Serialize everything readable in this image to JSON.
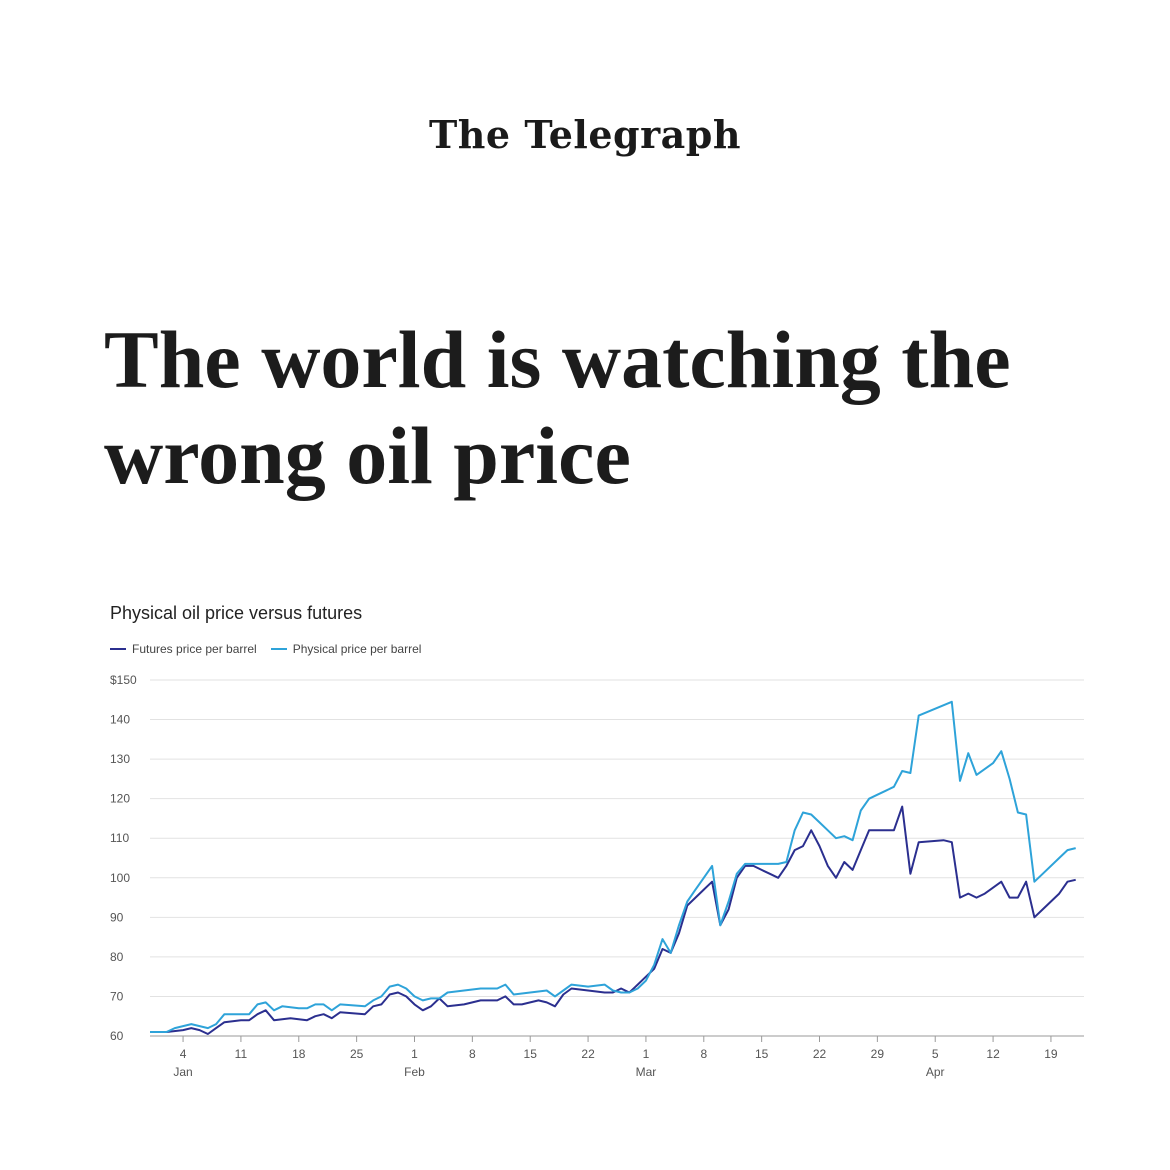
{
  "masthead": "The Telegraph",
  "headline": "The world is watching the wrong oil price",
  "chart_data": {
    "type": "line",
    "title": "Physical oil price versus futures",
    "xlabel": "",
    "ylabel": "",
    "ylim": [
      60,
      150
    ],
    "y_ticks": [
      "$150",
      "140",
      "130",
      "120",
      "110",
      "100",
      "90",
      "80",
      "70",
      "60"
    ],
    "y_tick_values": [
      150,
      140,
      130,
      120,
      110,
      100,
      90,
      80,
      70,
      60
    ],
    "x_ticks": [
      {
        "day": 4,
        "label": "4",
        "month": "Jan"
      },
      {
        "day": 11,
        "label": "11",
        "month": ""
      },
      {
        "day": 18,
        "label": "18",
        "month": ""
      },
      {
        "day": 25,
        "label": "25",
        "month": ""
      },
      {
        "day": 32,
        "label": "1",
        "month": "Feb"
      },
      {
        "day": 39,
        "label": "8",
        "month": ""
      },
      {
        "day": 46,
        "label": "15",
        "month": ""
      },
      {
        "day": 53,
        "label": "22",
        "month": ""
      },
      {
        "day": 60,
        "label": "1",
        "month": "Mar"
      },
      {
        "day": 67,
        "label": "8",
        "month": ""
      },
      {
        "day": 74,
        "label": "15",
        "month": ""
      },
      {
        "day": 81,
        "label": "22",
        "month": ""
      },
      {
        "day": 88,
        "label": "29",
        "month": ""
      },
      {
        "day": 95,
        "label": "5",
        "month": "Apr"
      },
      {
        "day": 102,
        "label": "12",
        "month": ""
      },
      {
        "day": 109,
        "label": "19",
        "month": ""
      }
    ],
    "xlim": [
      0,
      113
    ],
    "grid": true,
    "legend_placement": "top-left",
    "series": [
      {
        "name": "Futures price per barrel",
        "color": "#2b2f8f",
        "points": [
          [
            0,
            61
          ],
          [
            2,
            61
          ],
          [
            4,
            61.5
          ],
          [
            5,
            62
          ],
          [
            6,
            61.5
          ],
          [
            7,
            60.5
          ],
          [
            8,
            62
          ],
          [
            9,
            63.5
          ],
          [
            11,
            64
          ],
          [
            12,
            64
          ],
          [
            13,
            65.5
          ],
          [
            14,
            66.5
          ],
          [
            15,
            64
          ],
          [
            17,
            64.5
          ],
          [
            19,
            64
          ],
          [
            20,
            65
          ],
          [
            21,
            65.5
          ],
          [
            22,
            64.5
          ],
          [
            23,
            66
          ],
          [
            26,
            65.5
          ],
          [
            27,
            67.5
          ],
          [
            28,
            68
          ],
          [
            29,
            70.5
          ],
          [
            30,
            71
          ],
          [
            31,
            70
          ],
          [
            32,
            68
          ],
          [
            33,
            66.5
          ],
          [
            34,
            67.5
          ],
          [
            35,
            69.5
          ],
          [
            36,
            67.5
          ],
          [
            38,
            68
          ],
          [
            40,
            69
          ],
          [
            42,
            69
          ],
          [
            43,
            70
          ],
          [
            44,
            68
          ],
          [
            45,
            68
          ],
          [
            46,
            68.5
          ],
          [
            47,
            69
          ],
          [
            48,
            68.5
          ],
          [
            49,
            67.5
          ],
          [
            50,
            70.5
          ],
          [
            51,
            72
          ],
          [
            53,
            71.5
          ],
          [
            55,
            71
          ],
          [
            56,
            71
          ],
          [
            57,
            72
          ],
          [
            58,
            71
          ],
          [
            59,
            73
          ],
          [
            60,
            75
          ],
          [
            61,
            77
          ],
          [
            62,
            82
          ],
          [
            63,
            81
          ],
          [
            64,
            86
          ],
          [
            65,
            93
          ],
          [
            66,
            95
          ],
          [
            67,
            97
          ],
          [
            68,
            99
          ],
          [
            69,
            88
          ],
          [
            70,
            92
          ],
          [
            71,
            100
          ],
          [
            72,
            103
          ],
          [
            73,
            103
          ],
          [
            74,
            102
          ],
          [
            75,
            101
          ],
          [
            76,
            100
          ],
          [
            77,
            103
          ],
          [
            78,
            107
          ],
          [
            79,
            108
          ],
          [
            80,
            112
          ],
          [
            81,
            108
          ],
          [
            82,
            103
          ],
          [
            83,
            100
          ],
          [
            84,
            104
          ],
          [
            85,
            102
          ],
          [
            86,
            107
          ],
          [
            87,
            112
          ],
          [
            88,
            112
          ],
          [
            89,
            112
          ],
          [
            90,
            112
          ],
          [
            91,
            118
          ],
          [
            92,
            101
          ],
          [
            93,
            109
          ],
          [
            96,
            109.5
          ],
          [
            97,
            109
          ],
          [
            98,
            95
          ],
          [
            99,
            96
          ],
          [
            100,
            95
          ],
          [
            101,
            96
          ],
          [
            103,
            99
          ],
          [
            104,
            95
          ],
          [
            105,
            95
          ],
          [
            106,
            99
          ],
          [
            107,
            90
          ],
          [
            108,
            92
          ],
          [
            110,
            96
          ],
          [
            111,
            99
          ],
          [
            112,
            99.5
          ]
        ]
      },
      {
        "name": "Physical price per barrel",
        "color": "#2ea3d9",
        "points": [
          [
            0,
            61
          ],
          [
            2,
            61
          ],
          [
            3,
            62
          ],
          [
            4,
            62.5
          ],
          [
            5,
            63
          ],
          [
            6,
            62.5
          ],
          [
            7,
            62
          ],
          [
            8,
            63
          ],
          [
            9,
            65.5
          ],
          [
            11,
            65.5
          ],
          [
            12,
            65.5
          ],
          [
            13,
            68
          ],
          [
            14,
            68.5
          ],
          [
            15,
            66.5
          ],
          [
            16,
            67.5
          ],
          [
            18,
            67
          ],
          [
            19,
            67
          ],
          [
            20,
            68
          ],
          [
            21,
            68
          ],
          [
            22,
            66.5
          ],
          [
            23,
            68
          ],
          [
            26,
            67.5
          ],
          [
            27,
            69
          ],
          [
            28,
            70
          ],
          [
            29,
            72.5
          ],
          [
            30,
            73
          ],
          [
            31,
            72
          ],
          [
            32,
            70
          ],
          [
            33,
            69
          ],
          [
            34,
            69.5
          ],
          [
            35,
            69.5
          ],
          [
            36,
            71
          ],
          [
            38,
            71.5
          ],
          [
            40,
            72
          ],
          [
            42,
            72
          ],
          [
            43,
            73
          ],
          [
            44,
            70.5
          ],
          [
            46,
            71
          ],
          [
            48,
            71.5
          ],
          [
            49,
            70
          ],
          [
            50,
            71.5
          ],
          [
            51,
            73
          ],
          [
            53,
            72.5
          ],
          [
            55,
            73
          ],
          [
            56,
            71.5
          ],
          [
            57,
            71
          ],
          [
            58,
            71
          ],
          [
            59,
            72
          ],
          [
            60,
            74
          ],
          [
            61,
            78
          ],
          [
            62,
            84.5
          ],
          [
            63,
            81
          ],
          [
            64,
            88
          ],
          [
            65,
            94
          ],
          [
            66,
            97
          ],
          [
            67,
            100
          ],
          [
            68,
            103
          ],
          [
            69,
            88
          ],
          [
            70,
            94
          ],
          [
            71,
            101
          ],
          [
            72,
            103.5
          ],
          [
            74,
            103.5
          ],
          [
            76,
            103.5
          ],
          [
            77,
            104
          ],
          [
            78,
            112
          ],
          [
            79,
            116.5
          ],
          [
            80,
            116
          ],
          [
            81,
            114
          ],
          [
            82,
            112
          ],
          [
            83,
            110
          ],
          [
            84,
            110.5
          ],
          [
            85,
            109.5
          ],
          [
            86,
            117
          ],
          [
            87,
            120
          ],
          [
            88,
            121
          ],
          [
            89,
            122
          ],
          [
            90,
            123
          ],
          [
            91,
            127
          ],
          [
            92,
            126.5
          ],
          [
            93,
            141
          ],
          [
            97,
            144.5
          ],
          [
            98,
            124.5
          ],
          [
            99,
            131.5
          ],
          [
            100,
            126
          ],
          [
            102,
            129
          ],
          [
            103,
            132
          ],
          [
            104,
            125
          ],
          [
            105,
            116.5
          ],
          [
            106,
            116
          ],
          [
            107,
            99
          ],
          [
            108,
            101
          ],
          [
            110,
            105
          ],
          [
            111,
            107
          ],
          [
            112,
            107.5
          ]
        ]
      }
    ]
  }
}
